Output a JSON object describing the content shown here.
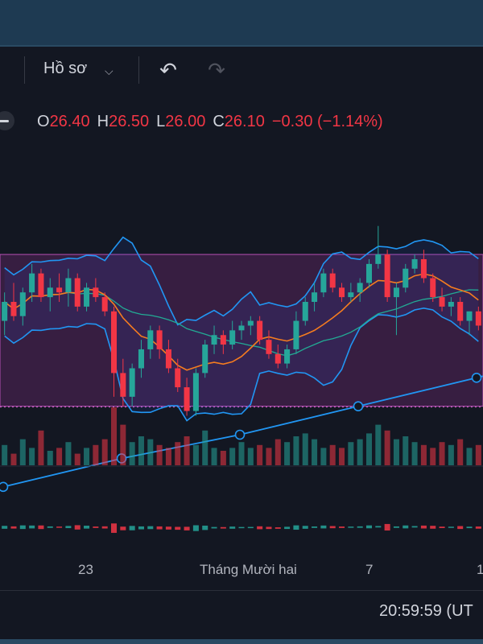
{
  "toolbar": {
    "profile_label": "Hồ sơ",
    "profile_caret": "⌵",
    "undo_icon": "↶",
    "redo_icon": "↷"
  },
  "legend": {
    "o_label": "O",
    "o_value": "26.40",
    "h_label": "H",
    "h_value": "26.50",
    "l_label": "L",
    "l_value": "26.00",
    "c_label": "C",
    "c_value": "26.10",
    "change": "−0.30 (−1.14%)"
  },
  "colors": {
    "up": "#26a69a",
    "down": "#f23645",
    "bollinger": "#2196f3",
    "ma_orange": "#f57c1f",
    "ma_teal": "#22ab94",
    "ma_long": "#2962ff",
    "band_fill": "#7b2b7a"
  },
  "time_axis": {
    "ticks": [
      "23",
      "Tháng Mười hai",
      "7",
      "1"
    ]
  },
  "clock": "20:59:59 (UT",
  "chart_data": {
    "type": "candlestick",
    "price_range": [
      24.8,
      27.6
    ],
    "box_range": [
      25.1,
      26.7
    ],
    "candles": [
      {
        "o": 26.0,
        "h": 26.3,
        "l": 25.85,
        "c": 26.2
      },
      {
        "o": 26.2,
        "h": 26.4,
        "l": 26.0,
        "c": 26.05
      },
      {
        "o": 26.05,
        "h": 26.35,
        "l": 25.95,
        "c": 26.3
      },
      {
        "o": 26.3,
        "h": 26.6,
        "l": 26.2,
        "c": 26.5
      },
      {
        "o": 26.5,
        "h": 26.55,
        "l": 26.2,
        "c": 26.25
      },
      {
        "o": 26.25,
        "h": 26.45,
        "l": 26.1,
        "c": 26.35
      },
      {
        "o": 26.35,
        "h": 26.5,
        "l": 26.2,
        "c": 26.3
      },
      {
        "o": 26.3,
        "h": 26.55,
        "l": 26.15,
        "c": 26.45
      },
      {
        "o": 26.45,
        "h": 26.5,
        "l": 26.1,
        "c": 26.15
      },
      {
        "o": 26.15,
        "h": 26.4,
        "l": 26.1,
        "c": 26.35
      },
      {
        "o": 26.35,
        "h": 26.45,
        "l": 26.2,
        "c": 26.25
      },
      {
        "o": 26.25,
        "h": 26.3,
        "l": 26.05,
        "c": 26.1
      },
      {
        "o": 26.1,
        "h": 26.15,
        "l": 25.2,
        "c": 25.45
      },
      {
        "o": 25.45,
        "h": 25.6,
        "l": 25.1,
        "c": 25.2
      },
      {
        "o": 25.2,
        "h": 25.55,
        "l": 25.1,
        "c": 25.5
      },
      {
        "o": 25.5,
        "h": 25.8,
        "l": 25.4,
        "c": 25.7
      },
      {
        "o": 25.7,
        "h": 25.95,
        "l": 25.6,
        "c": 25.9
      },
      {
        "o": 25.9,
        "h": 25.95,
        "l": 25.6,
        "c": 25.7
      },
      {
        "o": 25.7,
        "h": 25.8,
        "l": 25.45,
        "c": 25.5
      },
      {
        "o": 25.5,
        "h": 25.6,
        "l": 25.25,
        "c": 25.3
      },
      {
        "o": 25.3,
        "h": 25.4,
        "l": 25.0,
        "c": 25.05
      },
      {
        "o": 25.05,
        "h": 25.5,
        "l": 25.0,
        "c": 25.45
      },
      {
        "o": 25.45,
        "h": 25.8,
        "l": 25.4,
        "c": 25.75
      },
      {
        "o": 25.75,
        "h": 25.95,
        "l": 25.65,
        "c": 25.85
      },
      {
        "o": 25.85,
        "h": 25.9,
        "l": 25.65,
        "c": 25.75
      },
      {
        "o": 25.75,
        "h": 26.0,
        "l": 25.7,
        "c": 25.9
      },
      {
        "o": 25.9,
        "h": 26.0,
        "l": 25.8,
        "c": 25.95
      },
      {
        "o": 25.95,
        "h": 26.05,
        "l": 25.85,
        "c": 26.0
      },
      {
        "o": 26.0,
        "h": 26.05,
        "l": 25.75,
        "c": 25.8
      },
      {
        "o": 25.8,
        "h": 25.9,
        "l": 25.6,
        "c": 25.65
      },
      {
        "o": 25.65,
        "h": 25.75,
        "l": 25.5,
        "c": 25.55
      },
      {
        "o": 25.55,
        "h": 25.75,
        "l": 25.5,
        "c": 25.7
      },
      {
        "o": 25.7,
        "h": 26.1,
        "l": 25.65,
        "c": 26.0
      },
      {
        "o": 26.0,
        "h": 26.25,
        "l": 25.95,
        "c": 26.2
      },
      {
        "o": 26.2,
        "h": 26.4,
        "l": 26.1,
        "c": 26.3
      },
      {
        "o": 26.3,
        "h": 26.55,
        "l": 26.25,
        "c": 26.5
      },
      {
        "o": 26.5,
        "h": 26.55,
        "l": 26.3,
        "c": 26.35
      },
      {
        "o": 26.35,
        "h": 26.4,
        "l": 26.2,
        "c": 26.25
      },
      {
        "o": 26.25,
        "h": 26.4,
        "l": 26.2,
        "c": 26.3
      },
      {
        "o": 26.3,
        "h": 26.45,
        "l": 26.2,
        "c": 26.4
      },
      {
        "o": 26.4,
        "h": 26.65,
        "l": 26.35,
        "c": 26.6
      },
      {
        "o": 26.6,
        "h": 27.0,
        "l": 26.55,
        "c": 26.7
      },
      {
        "o": 26.7,
        "h": 26.75,
        "l": 26.2,
        "c": 26.25
      },
      {
        "o": 26.25,
        "h": 26.4,
        "l": 25.85,
        "c": 26.35
      },
      {
        "o": 26.35,
        "h": 26.6,
        "l": 26.3,
        "c": 26.55
      },
      {
        "o": 26.55,
        "h": 26.7,
        "l": 26.5,
        "c": 26.65
      },
      {
        "o": 26.65,
        "h": 26.75,
        "l": 26.4,
        "c": 26.45
      },
      {
        "o": 26.45,
        "h": 26.5,
        "l": 26.2,
        "c": 26.25
      },
      {
        "o": 26.25,
        "h": 26.35,
        "l": 26.1,
        "c": 26.15
      },
      {
        "o": 26.15,
        "h": 26.25,
        "l": 26.05,
        "c": 26.2
      },
      {
        "o": 26.2,
        "h": 26.25,
        "l": 25.95,
        "c": 26.0
      },
      {
        "o": 26.0,
        "h": 26.1,
        "l": 25.85,
        "c": 26.1
      },
      {
        "o": 26.1,
        "h": 26.15,
        "l": 25.9,
        "c": 25.95
      }
    ],
    "volumes": [
      0.35,
      0.2,
      0.45,
      0.3,
      0.6,
      0.25,
      0.3,
      0.4,
      0.2,
      0.3,
      0.35,
      0.45,
      1.0,
      0.7,
      0.4,
      0.5,
      0.45,
      0.35,
      0.3,
      0.4,
      0.5,
      0.35,
      0.6,
      0.3,
      0.25,
      0.3,
      0.4,
      0.3,
      0.35,
      0.3,
      0.45,
      0.4,
      0.5,
      0.55,
      0.45,
      0.3,
      0.35,
      0.3,
      0.4,
      0.45,
      0.55,
      0.7,
      0.6,
      0.45,
      0.5,
      0.4,
      0.35,
      0.3,
      0.4,
      0.35,
      0.45,
      0.3,
      0.35
    ],
    "long_ma_markers": [
      24.25,
      24.55,
      24.8,
      25.1,
      25.4
    ]
  }
}
